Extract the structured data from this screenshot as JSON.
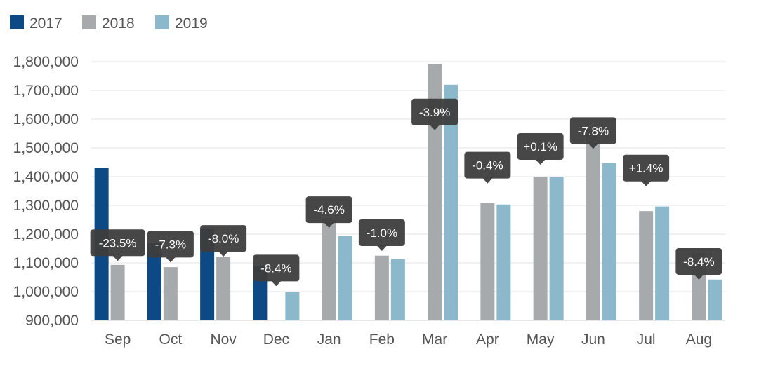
{
  "chart_data": {
    "type": "bar",
    "categories": [
      "Sep",
      "Oct",
      "Nov",
      "Dec",
      "Jan",
      "Feb",
      "Mar",
      "Apr",
      "May",
      "Jun",
      "Jul",
      "Aug"
    ],
    "series": [
      {
        "name": "2017",
        "color": "#0d4a85",
        "values": [
          1430000,
          1170000,
          1220000,
          1090000,
          null,
          null,
          null,
          null,
          null,
          null,
          null,
          null
        ]
      },
      {
        "name": "2018",
        "color": "#a7aaad",
        "values": [
          1093000,
          1085000,
          1120000,
          null,
          1255000,
          1125000,
          1792000,
          1308000,
          1400000,
          1565000,
          1280000,
          1135000
        ]
      },
      {
        "name": "2019",
        "color": "#8bb8ca",
        "values": [
          null,
          null,
          null,
          998000,
          1195000,
          1113000,
          1720000,
          1303000,
          1400000,
          1447000,
          1296000,
          1042000
        ]
      }
    ],
    "callouts": [
      "-23.5%",
      "-7.3%",
      "-8.0%",
      "-8.4%",
      "-4.6%",
      "-1.0%",
      "-3.9%",
      "-0.4%",
      "+0.1%",
      "-7.8%",
      "+1.4%",
      "-8.4%"
    ],
    "callout_values": [
      1170000,
      1165000,
      1185000,
      1082000,
      1285000,
      1205000,
      1625000,
      1440000,
      1505000,
      1560000,
      1430000,
      1105000
    ],
    "yticks": [
      "900,000",
      "1,000,000",
      "1,100,000",
      "1,200,000",
      "1,300,000",
      "1,400,000",
      "1,500,000",
      "1,600,000",
      "1,700,000",
      "1,800,000"
    ],
    "ylim": [
      900000,
      1800000
    ],
    "grid": true,
    "legend_position": "top-left",
    "title": "",
    "xlabel": "",
    "ylabel": ""
  }
}
